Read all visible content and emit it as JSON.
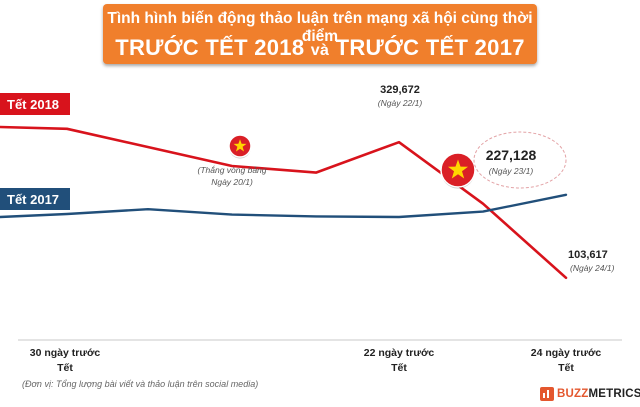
{
  "title": {
    "line1": "Tình hình biến động thảo luận trên mạng xã hội cùng thời điểm",
    "line2_a": "TRƯỚC TẾT 2018",
    "line2_b": "và",
    "line2_c": "TRƯỚC TẾT 2017"
  },
  "footnote": "(Đơn vị: Tổng lượng bài viết và thảo luận trên social media)",
  "brand": {
    "buzz": "BUZZ",
    "metrics": "METRICS"
  },
  "colors": {
    "series_2018": "#d8131c",
    "series_2017": "#214f7a",
    "title_bg": "#f07f2c"
  },
  "chart_data": {
    "type": "line",
    "x_labels": [
      {
        "x": 30,
        "line1": "30 ngày trước",
        "line2": "Tết"
      },
      {
        "x": 22,
        "line1": "22 ngày trước",
        "line2": "Tết"
      },
      {
        "x": 24,
        "line1": "24 ngày trước",
        "line2": "Tết"
      }
    ],
    "series": [
      {
        "name": "Tết 2018",
        "color": "#d8131c",
        "points": [
          {
            "x": 31.2,
            "y": 355000
          },
          {
            "x": 30,
            "y": 352000
          },
          {
            "x": 20,
            "y": 290000
          },
          {
            "x": 21,
            "y": 279000
          },
          {
            "x": 22,
            "y": 329672
          },
          {
            "x": 23,
            "y": 227128
          },
          {
            "x": 24,
            "y": 103617
          }
        ]
      },
      {
        "name": "Tết 2017",
        "color": "#214f7a",
        "points": [
          {
            "x": 31.2,
            "y": 205000
          },
          {
            "x": 30,
            "y": 210000
          },
          {
            "x": 29,
            "y": 218000
          },
          {
            "x": 20,
            "y": 209000
          },
          {
            "x": 21,
            "y": 206000
          },
          {
            "x": 22,
            "y": 205000
          },
          {
            "x": 23,
            "y": 214000
          },
          {
            "x": 24,
            "y": 242000
          }
        ]
      }
    ],
    "annotations": [
      {
        "value": "329,672",
        "date": "(Ngày 22/1)"
      },
      {
        "value": "227,128",
        "date": "(Ngày 23/1)"
      },
      {
        "value": "103,617",
        "date": "(Ngày 24/1)"
      },
      {
        "value": "",
        "date_line1": "(Thắng vòng bảng",
        "date_line2": "Ngày 20/1)"
      }
    ],
    "series_labels": [
      "Tết 2018",
      "Tết 2017"
    ]
  }
}
